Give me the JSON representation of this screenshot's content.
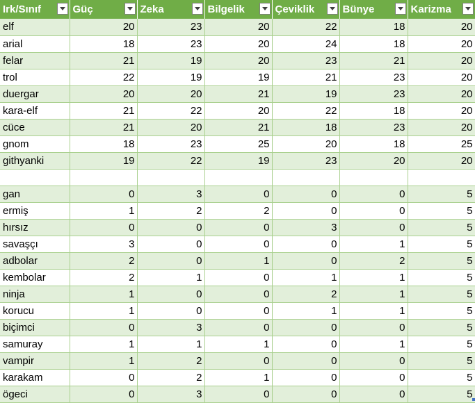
{
  "headers": [
    "Irk/Sınıf",
    "Güç",
    "Zeka",
    "Bilgelik",
    "Çeviklik",
    "Bünye",
    "Karizma"
  ],
  "rows": [
    [
      "elf",
      "20",
      "23",
      "20",
      "22",
      "18",
      "20"
    ],
    [
      "arial",
      "18",
      "23",
      "20",
      "24",
      "18",
      "20"
    ],
    [
      "felar",
      "21",
      "19",
      "20",
      "23",
      "21",
      "20"
    ],
    [
      "trol",
      "22",
      "19",
      "19",
      "21",
      "23",
      "20"
    ],
    [
      "duergar",
      "20",
      "20",
      "21",
      "19",
      "23",
      "20"
    ],
    [
      "kara-elf",
      "21",
      "22",
      "20",
      "22",
      "18",
      "20"
    ],
    [
      "cüce",
      "21",
      "20",
      "21",
      "18",
      "23",
      "20"
    ],
    [
      "gnom",
      "18",
      "23",
      "25",
      "20",
      "18",
      "25"
    ],
    [
      "githyanki",
      "19",
      "22",
      "19",
      "23",
      "20",
      "20"
    ],
    [
      "",
      "",
      "",
      "",
      "",
      "",
      ""
    ],
    [
      "gan",
      "0",
      "3",
      "0",
      "0",
      "0",
      "5"
    ],
    [
      "ermiş",
      "1",
      "2",
      "2",
      "0",
      "0",
      "5"
    ],
    [
      "hırsız",
      "0",
      "0",
      "0",
      "3",
      "0",
      "5"
    ],
    [
      "savaşçı",
      "3",
      "0",
      "0",
      "0",
      "1",
      "5"
    ],
    [
      "adbolar",
      "2",
      "0",
      "1",
      "0",
      "2",
      "5"
    ],
    [
      "kembolar",
      "2",
      "1",
      "0",
      "1",
      "1",
      "5"
    ],
    [
      "ninja",
      "1",
      "0",
      "0",
      "2",
      "1",
      "5"
    ],
    [
      "korucu",
      "1",
      "0",
      "0",
      "1",
      "1",
      "5"
    ],
    [
      "biçimci",
      "0",
      "3",
      "0",
      "0",
      "0",
      "5"
    ],
    [
      "samuray",
      "1",
      "1",
      "1",
      "0",
      "1",
      "5"
    ],
    [
      "vampir",
      "1",
      "2",
      "0",
      "0",
      "0",
      "5"
    ],
    [
      "karakam",
      "0",
      "2",
      "1",
      "0",
      "0",
      "5"
    ],
    [
      "ögeci",
      "0",
      "3",
      "0",
      "0",
      "0",
      "5"
    ]
  ],
  "colors": {
    "header_bg": "#70ad47",
    "band_bg": "#e2efda",
    "grid": "#a9d08e"
  },
  "icons": {
    "filter": "filter-dropdown-icon"
  }
}
